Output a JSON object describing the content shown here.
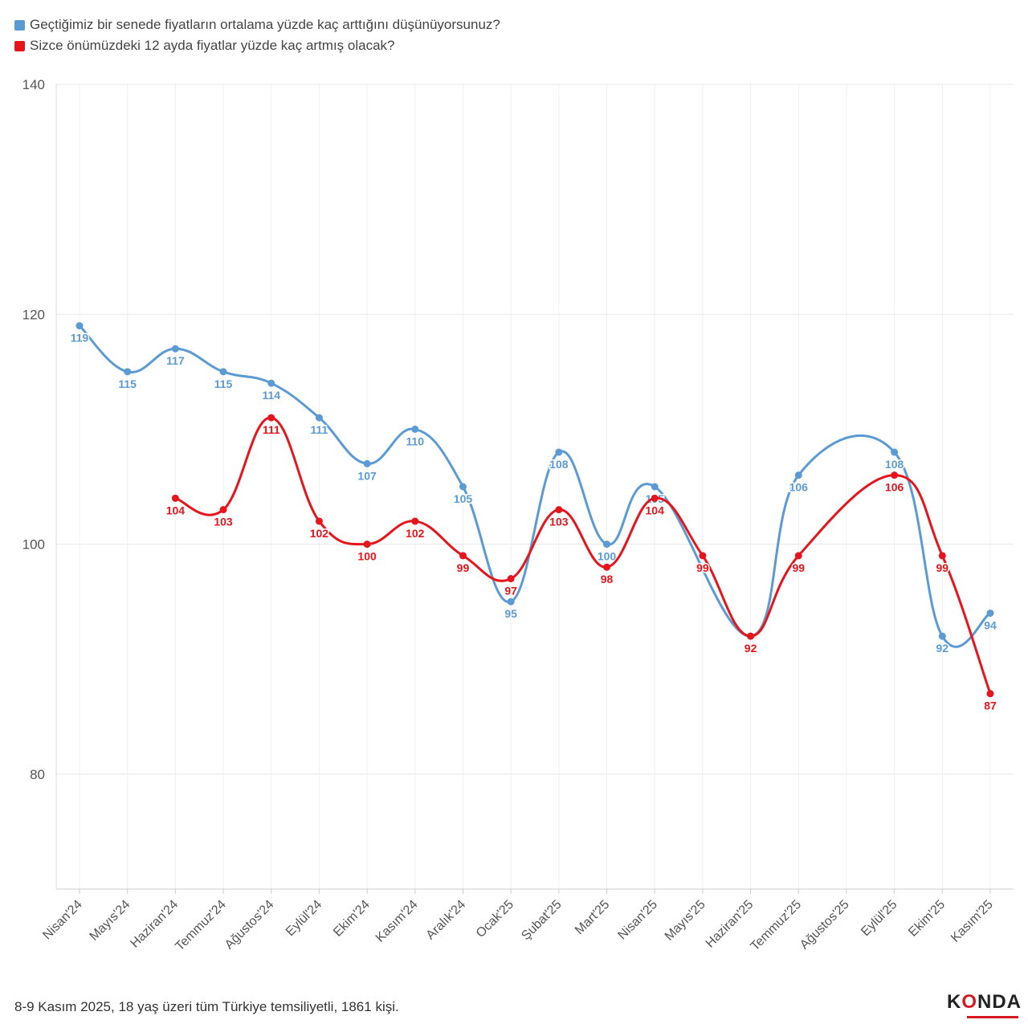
{
  "legend": [
    {
      "label": "Geçtiğimiz bir senede fiyatların ortalama yüzde kaç arttığını düşünüyorsunuz?",
      "color": "#5b9bd5"
    },
    {
      "label": "Sizce önümüzdeki 12 ayda fiyatlar yüzde kaç artmış olacak?",
      "color": "#e8141b"
    }
  ],
  "footer": "8-9 Kasım 2025, 18 yaş üzeri tüm Türkiye temsiliyetli, 1861 kişi.",
  "logo": {
    "text_before": "K",
    "text_o": "O",
    "text_after": "NDA"
  },
  "chart_data": {
    "type": "line",
    "categories": [
      "Nisan'24",
      "Mayıs'24",
      "Haziran'24",
      "Temmuz'24",
      "Ağustos'24",
      "Eylül'24",
      "Ekim'24",
      "Kasım'24",
      "Aralık'24",
      "Ocak'25",
      "Şubat'25",
      "Mart'25",
      "Nisan'25",
      "Mayıs'25",
      "Haziran'25",
      "Temmuz'25",
      "Ağustos'25",
      "Eylül'25",
      "Ekim'25",
      "Kasım'25"
    ],
    "series": [
      {
        "name": "Geçtiğimiz bir senede fiyatların ortalama yüzde kaç arttığını düşünüyorsunuz?",
        "color": "#5b9bd5",
        "values": [
          119,
          115,
          117,
          115,
          114,
          111,
          107,
          110,
          105,
          95,
          108,
          100,
          105,
          null,
          92,
          106,
          null,
          108,
          92,
          94
        ]
      },
      {
        "name": "Sizce önümüzdeki 12 ayda fiyatlar yüzde kaç artmış olacak?",
        "color": "#e8141b",
        "values": [
          null,
          null,
          104,
          103,
          111,
          102,
          100,
          102,
          99,
          97,
          103,
          98,
          104,
          99,
          92,
          99,
          null,
          106,
          99,
          87
        ]
      }
    ],
    "yticks": [
      80,
      100,
      120,
      140
    ],
    "ylim": [
      70,
      140
    ],
    "grid": true,
    "legend_position": "top-left"
  }
}
